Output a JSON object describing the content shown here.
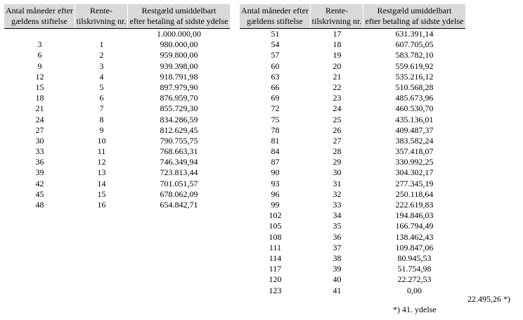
{
  "headers": {
    "months": [
      "Antal måneder efter",
      "gældens stiftelse"
    ],
    "interest": [
      "Rente-",
      "tilskrivning nr."
    ],
    "balance": [
      "Restgæld umiddelbart",
      "efter betaling af sidste ydelse"
    ]
  },
  "left_rows": [
    {
      "months": "",
      "nr": "",
      "balance": "1.000.000,00"
    },
    {
      "months": "3",
      "nr": "1",
      "balance": "980.000,00"
    },
    {
      "months": "6",
      "nr": "2",
      "balance": "959.800,00"
    },
    {
      "months": "9",
      "nr": "3",
      "balance": "939.398,00"
    },
    {
      "months": "12",
      "nr": "4",
      "balance": "918.791,98"
    },
    {
      "months": "15",
      "nr": "5",
      "balance": "897.979,90"
    },
    {
      "months": "18",
      "nr": "6",
      "balance": "876.959,70"
    },
    {
      "months": "21",
      "nr": "7",
      "balance": "855.729,30"
    },
    {
      "months": "24",
      "nr": "8",
      "balance": "834.286,59"
    },
    {
      "months": "27",
      "nr": "9",
      "balance": "812.629,45"
    },
    {
      "months": "30",
      "nr": "10",
      "balance": "790.755,75"
    },
    {
      "months": "33",
      "nr": "11",
      "balance": "768.663,31"
    },
    {
      "months": "36",
      "nr": "12",
      "balance": "746.349,94"
    },
    {
      "months": "39",
      "nr": "13",
      "balance": "723.813,44"
    },
    {
      "months": "42",
      "nr": "14",
      "balance": "701.051,57"
    },
    {
      "months": "45",
      "nr": "15",
      "balance": "678.062,09"
    },
    {
      "months": "48",
      "nr": "16",
      "balance": "654.842,71"
    }
  ],
  "right_rows": [
    {
      "months": "51",
      "nr": "17",
      "balance": "631.391,14"
    },
    {
      "months": "54",
      "nr": "18",
      "balance": "607.705,05"
    },
    {
      "months": "57",
      "nr": "19",
      "balance": "583.782,10"
    },
    {
      "months": "60",
      "nr": "20",
      "balance": "559.619,92"
    },
    {
      "months": "63",
      "nr": "21",
      "balance": "535.216,12"
    },
    {
      "months": "66",
      "nr": "22",
      "balance": "510.568,28"
    },
    {
      "months": "69",
      "nr": "23",
      "balance": "485.673,96"
    },
    {
      "months": "72",
      "nr": "24",
      "balance": "460.530,70"
    },
    {
      "months": "75",
      "nr": "25",
      "balance": "435.136,01"
    },
    {
      "months": "78",
      "nr": "26",
      "balance": "409.487,37"
    },
    {
      "months": "81",
      "nr": "27",
      "balance": "383.582,24"
    },
    {
      "months": "84",
      "nr": "28",
      "balance": "357.418,07"
    },
    {
      "months": "87",
      "nr": "29",
      "balance": "330.992,25"
    },
    {
      "months": "90",
      "nr": "30",
      "balance": "304.302,17"
    },
    {
      "months": "93",
      "nr": "31",
      "balance": "277.345,19"
    },
    {
      "months": "96",
      "nr": "32",
      "balance": "250.118,64"
    },
    {
      "months": "99",
      "nr": "33",
      "balance": "222.619,83"
    },
    {
      "months": "102",
      "nr": "34",
      "balance": "194.846,03"
    },
    {
      "months": "105",
      "nr": "35",
      "balance": "166.794,49"
    },
    {
      "months": "108",
      "nr": "36",
      "balance": "138.462,43"
    },
    {
      "months": "111",
      "nr": "37",
      "balance": "109.847,06"
    },
    {
      "months": "114",
      "nr": "38",
      "balance": "80.945,53"
    },
    {
      "months": "117",
      "nr": "39",
      "balance": "51.754,98"
    },
    {
      "months": "120",
      "nr": "40",
      "balance": "22.272,53"
    },
    {
      "months": "123",
      "nr": "41",
      "balance": "0,00"
    }
  ],
  "footnote": {
    "total": "22.495,26  *)",
    "text": "*)  41. ydelse"
  }
}
